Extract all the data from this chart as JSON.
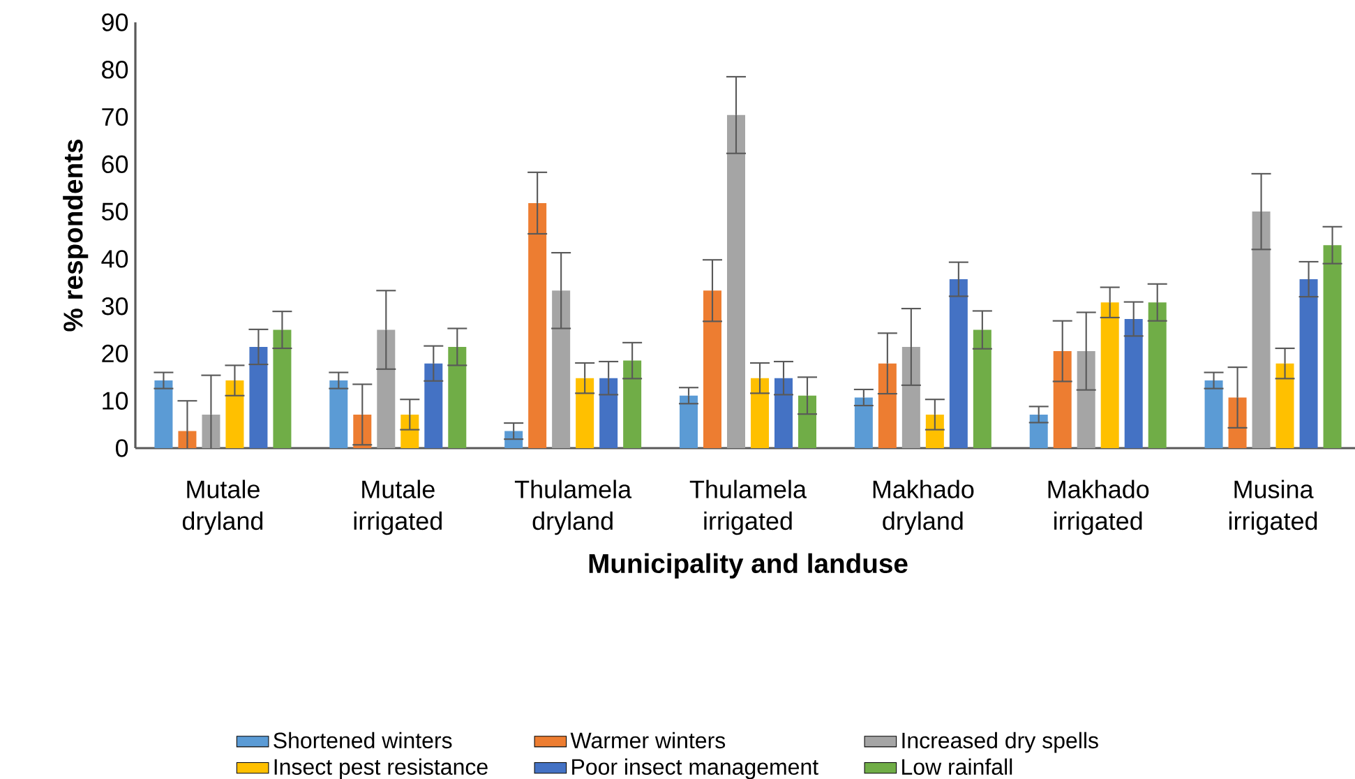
{
  "chart_data": {
    "type": "bar",
    "xlabel": "Municipality and landuse",
    "ylabel": "% respondents",
    "categories": [
      "Mutale dryland",
      "Mutale irrigated",
      "Thulamela dryland",
      "Thulamela irrigated",
      "Makhado dryland",
      "Makhado irrigated",
      "Musina irrigated"
    ],
    "series": [
      {
        "name": "Shortened winters",
        "color": "#5b9bd5",
        "values": [
          14.3,
          14.3,
          3.6,
          11.1,
          10.7,
          7.1,
          14.3
        ],
        "errors": [
          1.7,
          1.7,
          1.7,
          1.7,
          1.7,
          1.7,
          1.7
        ]
      },
      {
        "name": "Warmer winters",
        "color": "#ed7d31",
        "values": [
          3.6,
          7.1,
          51.8,
          33.3,
          17.9,
          20.5,
          10.7
        ],
        "errors": [
          6.4,
          6.4,
          6.5,
          6.5,
          6.4,
          6.4,
          6.4
        ]
      },
      {
        "name": "Increased dry spells",
        "color": "#a5a5a5",
        "values": [
          7.1,
          25.0,
          33.3,
          70.4,
          21.4,
          20.5,
          50.0
        ],
        "errors": [
          8.3,
          8.3,
          8.0,
          8.1,
          8.1,
          8.2,
          8.0
        ]
      },
      {
        "name": "Insect pest resistance",
        "color": "#ffc000",
        "values": [
          14.3,
          7.1,
          14.8,
          14.8,
          7.1,
          30.8,
          17.9
        ],
        "errors": [
          3.2,
          3.2,
          3.2,
          3.2,
          3.2,
          3.2,
          3.2
        ]
      },
      {
        "name": "Poor insect management",
        "color": "#4472c4",
        "values": [
          21.4,
          17.9,
          14.8,
          14.8,
          35.7,
          27.3,
          35.7
        ],
        "errors": [
          3.7,
          3.7,
          3.5,
          3.5,
          3.6,
          3.6,
          3.7
        ]
      },
      {
        "name": "Low rainfall",
        "color": "#70ad47",
        "values": [
          25.0,
          21.4,
          18.5,
          11.1,
          25.0,
          30.8,
          42.9
        ],
        "errors": [
          3.9,
          3.9,
          3.8,
          3.9,
          4.0,
          3.9,
          3.9
        ]
      }
    ],
    "ylim": [
      0,
      90
    ],
    "yticks": [
      0,
      10,
      20,
      30,
      40,
      50,
      60,
      70,
      80,
      90
    ],
    "legend": "bottom"
  }
}
